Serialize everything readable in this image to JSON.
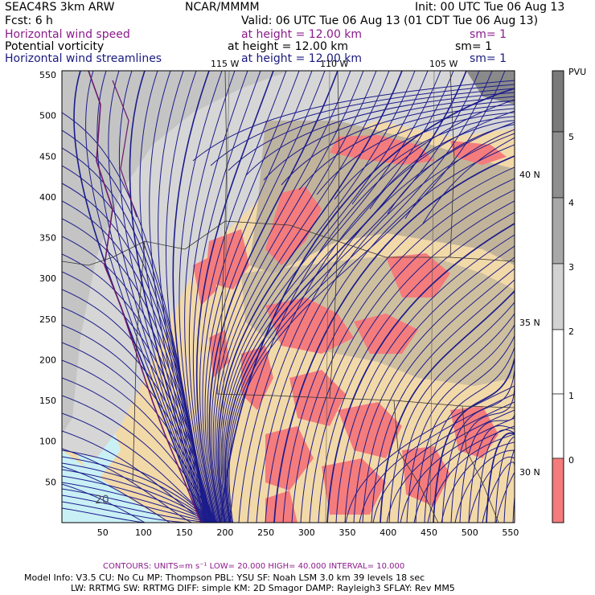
{
  "header": {
    "title": "SEAC4RS   3km ARW",
    "org": "NCAR/MMMM",
    "init": "Init: 00 UTC Tue 06 Aug 13",
    "fcst": "Fcst:   6 h",
    "valid": "Valid: 06 UTC Tue 06 Aug 13 (01 CDT Tue 06 Aug 13)",
    "fields": [
      {
        "name": "Horizontal wind speed",
        "height": "at height = 12.00 km",
        "sm": "sm= 1"
      },
      {
        "name": "Potential vorticity",
        "height": "at height = 12.00 km",
        "sm": "sm= 1"
      },
      {
        "name": "Horizontal wind streamlines",
        "height": "at height = 12.00 km",
        "sm": "sm= 1"
      }
    ]
  },
  "map": {
    "x_ticks": [
      "50",
      "100",
      "150",
      "200",
      "250",
      "300",
      "350",
      "400",
      "450",
      "500",
      "550"
    ],
    "y_ticks": [
      "50",
      "100",
      "150",
      "200",
      "250",
      "300",
      "350",
      "400",
      "450",
      "500",
      "550"
    ],
    "lon_labels": [
      "115 W",
      "110 W",
      "105 W"
    ],
    "lat_labels": [
      "40 N",
      "35 N",
      "30 N"
    ],
    "contour_label": "20",
    "colors": {
      "land": "#f2d9a8",
      "pv_light": "#d8d8d8",
      "pv_mid": "#b0b0b0",
      "pv_dark": "#888888",
      "negative": "#f47c7c",
      "streamline": "#1c1c8c",
      "ocean": "#c9f0f5"
    }
  },
  "colorbar": {
    "unit": "PVU",
    "labels": [
      "5",
      "4",
      "3",
      "2",
      "1",
      "0"
    ],
    "colors": [
      "#7a7a7a",
      "#8e8e8e",
      "#a8a8a8",
      "#d2d2d2",
      "#ffffff",
      "#ffffff",
      "#f47c7c"
    ]
  },
  "footer": {
    "contours": "CONTOURS:  UNITS=m s⁻¹  LOW=  20.000       HIGH=  40.000       INTERVAL=    10.000",
    "model_line1": "Model Info: V3.5      CU: No Cu      MP: Thompson     PBL: YSU        SF: Noah LSM      3.0 km   39 levels    18 sec",
    "model_line2": "LW: RRTMG    SW: RRTMG   DIFF: simple KM: 2D Smagor DAMP: Rayleigh3  SFLAY: Rev MM5"
  }
}
